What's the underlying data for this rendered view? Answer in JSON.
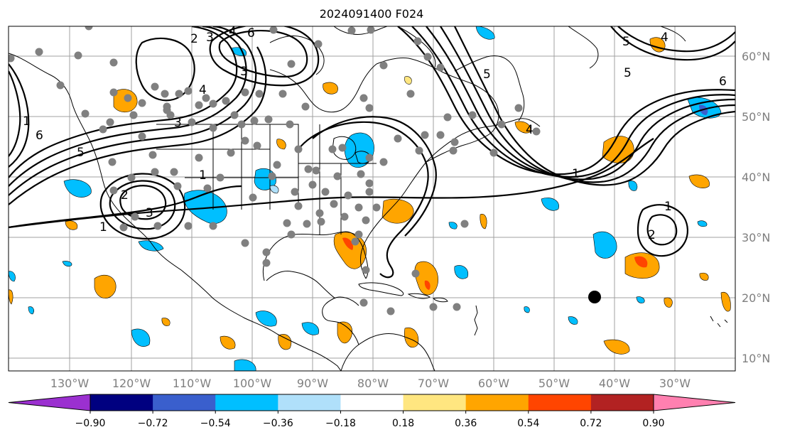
{
  "title": "2024091400 F024",
  "lon_labels": [
    "130°W",
    "120°W",
    "110°W",
    "100°W",
    "90°W",
    "80°W",
    "70°W",
    "60°W",
    "50°W",
    "40°W",
    "30°W"
  ],
  "lat_labels": [
    "60°N",
    "50°N",
    "40°N",
    "30°N",
    "20°N",
    "10°N"
  ],
  "colorbar": {
    "ticks": [
      "−0.90",
      "−0.72",
      "−0.54",
      "−0.36",
      "−0.18",
      "0.18",
      "0.36",
      "0.54",
      "0.72",
      "0.90"
    ],
    "colors": [
      "#9b30d0",
      "#000080",
      "#3a5fcd",
      "#00bfff",
      "#b0e0fa",
      "#ffffff",
      "#ffe680",
      "#ffa500",
      "#ff4500",
      "#b22222",
      "#ff80b0"
    ]
  },
  "contour_labels": [
    "1",
    "2",
    "3",
    "4",
    "5",
    "6",
    "1",
    "2",
    "3",
    "4",
    "5",
    "6",
    "1",
    "2",
    "3",
    "4",
    "1",
    "2",
    "3",
    "4",
    "5",
    "6",
    "1",
    "2"
  ],
  "marker": "storm-center-dot"
}
